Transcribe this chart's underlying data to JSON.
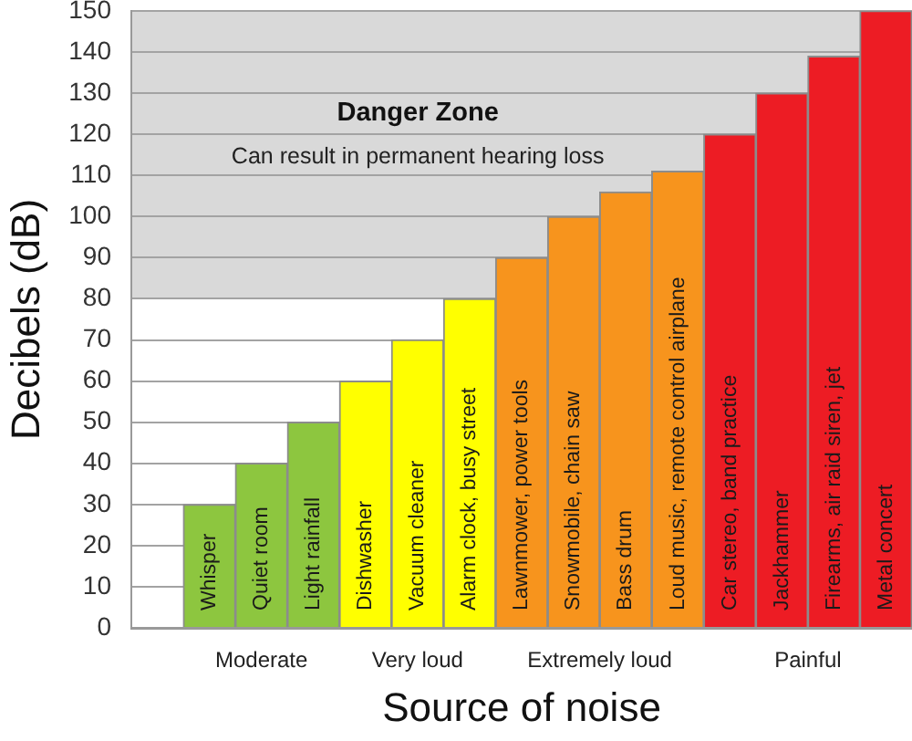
{
  "chart_data": {
    "type": "bar",
    "xlabel": "Source of noise",
    "ylabel": "Decibels (dB)",
    "categories": [
      null,
      "Whisper",
      "Quiet room",
      "Light rainfall",
      "Dishwasher",
      "Vacuum cleaner",
      "Alarm clock, busy street",
      "Lawnmower, power tools",
      "Snowmobile, chain saw",
      "Bass drum",
      "Loud music, remote control airplane",
      "Car stereo, band practice",
      "Jackhammer",
      "Firearms, air raid siren, jet",
      "Metal concert"
    ],
    "series": [
      {
        "name": "Moderate",
        "color": "#8dc63f",
        "values": [
          null,
          30,
          40,
          50,
          null,
          null,
          null,
          null,
          null,
          null,
          null,
          null,
          null,
          null,
          null
        ]
      },
      {
        "name": "Very loud",
        "color": "#ffff00",
        "values": [
          null,
          null,
          null,
          null,
          60,
          70,
          80,
          null,
          null,
          null,
          null,
          null,
          null,
          null,
          null
        ]
      },
      {
        "name": "Extremely loud",
        "color": "#f7941d",
        "values": [
          null,
          null,
          null,
          null,
          null,
          null,
          null,
          90,
          100,
          106,
          111,
          null,
          null,
          null,
          null
        ]
      },
      {
        "name": "Painful",
        "color": "#ed1c24",
        "values": [
          null,
          null,
          null,
          null,
          null,
          null,
          null,
          null,
          null,
          null,
          null,
          120,
          130,
          139,
          150
        ]
      }
    ],
    "ylim": [
      0,
      150
    ],
    "yticks": [
      0,
      10,
      20,
      30,
      40,
      50,
      60,
      70,
      80,
      90,
      100,
      110,
      120,
      130,
      140,
      150
    ],
    "grid": "y",
    "bands": [
      {
        "axis": "y",
        "from": 80,
        "to": 150,
        "label": "Danger Zone",
        "color": "#d9d9d9"
      }
    ],
    "annotations": [
      "Can result in permanent hearing loss"
    ]
  }
}
